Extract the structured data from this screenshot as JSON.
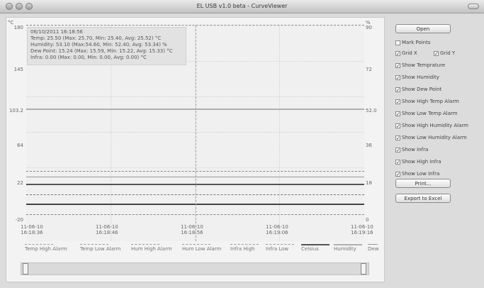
{
  "window": {
    "title": "EL USB v1.0 beta - CurveViewer"
  },
  "axes": {
    "left_unit": "°C",
    "right_unit": "%",
    "left_ticks": [
      "180",
      "145",
      "103.2",
      "64",
      "22",
      "-20"
    ],
    "right_ticks": [
      "90",
      "72",
      "52.0",
      "36",
      "18",
      "0"
    ],
    "x_ticks": [
      {
        "date": "11-06-10",
        "time": "16:18:36"
      },
      {
        "date": "11-06-10",
        "time": "16:18:46"
      },
      {
        "date": "11-06-10",
        "time": "16:18:56"
      },
      {
        "date": "11-06-10",
        "time": "16:19:06"
      },
      {
        "date": "11-06-10",
        "time": "16:19:16"
      }
    ]
  },
  "info": {
    "lines": [
      "06/10/2011 16:18:56",
      "Temp: 25.50 (Max: 25.70, Min: 25.40, Avg: 25.52) °C",
      "Humidity: 53.10 (Max:54.60, Min: 52.40, Avg: 53.34) %",
      "Dew Point: 15.24 (Max: 15.59, Min: 15.22, Avg: 15.33) °C",
      "Infra: 0.00 (Max: 0.00, Min: 0.00, Avg: 0.00) °C"
    ]
  },
  "legend": [
    "Temp High Alarm",
    "Temp Low Alarm",
    "Hum High Alarm",
    "Hum Low Alarm",
    "Infra High",
    "Infra Low",
    "Celsius",
    "Humidity",
    "Dew"
  ],
  "sidebar": {
    "open": "Open",
    "mark_points": "Mark Points",
    "grid_x": "Grid X",
    "grid_y": "Grid Y",
    "checks": [
      "Show Temprature",
      "Show Humidity",
      "Show Dew Point",
      "Show High Temp Alarm",
      "Show Low Temp Alarm",
      "Show High Humidity Alarm",
      "Show Low Humidity Alarm",
      "Show Infra",
      "Show High Infra",
      "Show Low Infra"
    ],
    "print": "Print...",
    "export": "Export to Excel"
  }
}
